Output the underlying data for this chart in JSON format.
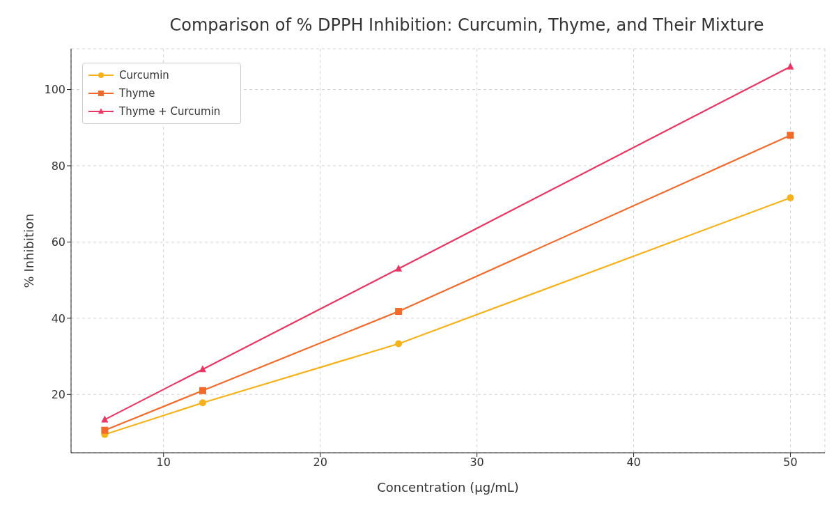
{
  "chart_data": {
    "type": "line",
    "title": "Comparison of % DPPH Inhibition: Curcumin, Thyme, and Their Mixture",
    "xlabel": "Concentration (µg/mL)",
    "ylabel": "% Inhibition",
    "x": [
      6.25,
      12.5,
      25,
      50
    ],
    "series": [
      {
        "name": "Curcumin",
        "color": "#f7b21b",
        "marker": "circle",
        "values": [
          9.5,
          17.8,
          33.3,
          71.6
        ]
      },
      {
        "name": "Thyme",
        "color": "#f26b2a",
        "marker": "square",
        "values": [
          10.6,
          21.0,
          41.8,
          88.0
        ]
      },
      {
        "name": "Thyme + Curcumin",
        "color": "#ea3462",
        "marker": "triangle",
        "values": [
          13.4,
          26.6,
          53.0,
          106.0
        ]
      }
    ],
    "xlim": [
      4.1,
      52.2
    ],
    "xticks": [
      10,
      20,
      30,
      40,
      50
    ],
    "ylim": [
      4.7,
      110.7
    ],
    "yticks": [
      20,
      40,
      60,
      80,
      100
    ],
    "grid": true,
    "legend": "top left",
    "line_style": "solid"
  }
}
